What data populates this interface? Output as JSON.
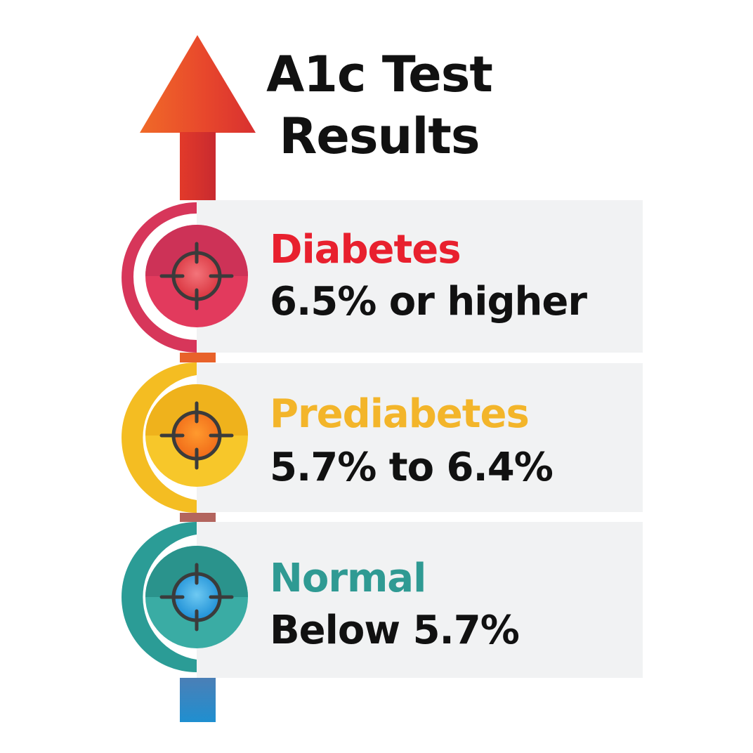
{
  "title": {
    "line1": "A1c Test",
    "line2": "Results"
  },
  "levels": [
    {
      "name": "Diabetes",
      "range": "6.5% or higher",
      "color": "#e8202e",
      "ring_color": "#d7365a",
      "icon": "crosshair-icon"
    },
    {
      "name": "Prediabetes",
      "range": "5.7% to 6.4%",
      "color": "#f3b52a",
      "ring_color": "#f4bd22",
      "icon": "crosshair-icon"
    },
    {
      "name": "Normal",
      "range": "Below 5.7%",
      "color": "#2f9a93",
      "ring_color": "#2b9c96",
      "icon": "crosshair-icon"
    }
  ],
  "arrow": {
    "icon": "up-arrow-icon",
    "color": "#e0432a"
  }
}
